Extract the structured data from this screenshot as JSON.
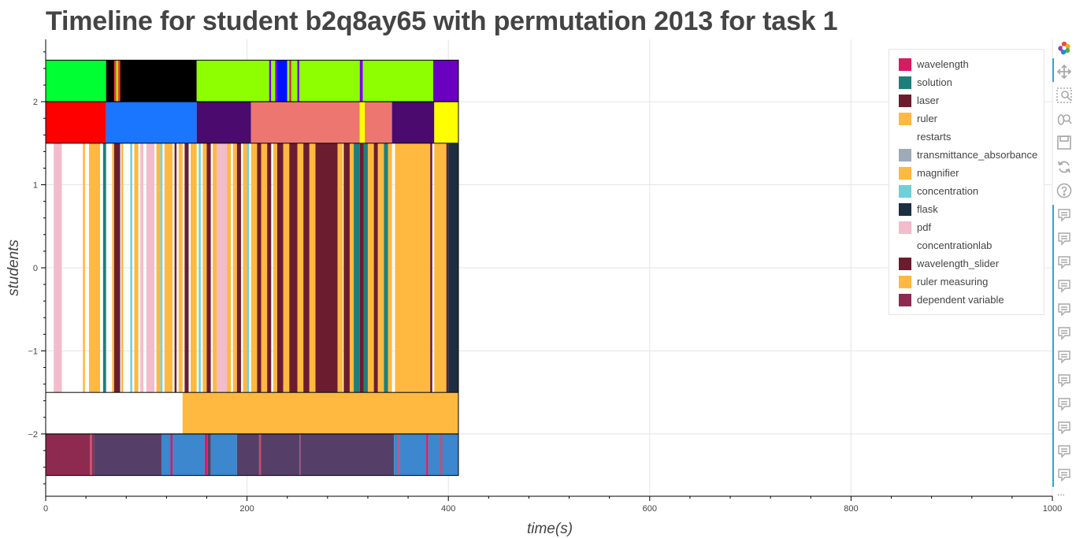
{
  "chart_data": {
    "type": "bar",
    "title": "Timeline for student b2q8ay65 with permutation 2013 for task 1",
    "xlabel": "time(s)",
    "ylabel": "students",
    "xlim": [
      0,
      1000
    ],
    "ylim": [
      -2.75,
      2.75
    ],
    "x_ticks": [
      0,
      200,
      400,
      600,
      800,
      1000
    ],
    "x_tick_labels": [
      "0",
      "200",
      "400",
      "600",
      "800",
      "1000"
    ],
    "y_ticks": [
      2,
      1,
      0,
      -1,
      -2
    ],
    "y_tick_labels": [
      "2",
      "1",
      "0",
      "−1",
      "−2"
    ],
    "grid": true,
    "legend_position": "top-right",
    "legend": [
      {
        "label": "wavelength",
        "color": "#d81b60"
      },
      {
        "label": "solution",
        "color": "#1e7f7a"
      },
      {
        "label": "laser",
        "color": "#6b1d2f"
      },
      {
        "label": "ruler",
        "color": "#ffb840"
      },
      {
        "label": "restarts",
        "color": "#ffffff"
      },
      {
        "label": "transmittance_absorbance",
        "color": "#9eaab8"
      },
      {
        "label": "magnifier",
        "color": "#ffb840"
      },
      {
        "label": "concentration",
        "color": "#6fd0d8"
      },
      {
        "label": "flask",
        "color": "#1c2e40"
      },
      {
        "label": "pdf",
        "color": "#f3bccc"
      },
      {
        "label": "concentrationlab",
        "color": "#ffffff"
      },
      {
        "label": "wavelength_slider",
        "color": "#6b1d2f"
      },
      {
        "label": "ruler measuring",
        "color": "#ffb840"
      },
      {
        "label": "dependent variable",
        "color": "#8e2a4f"
      }
    ],
    "rows": [
      {
        "y0": 2.0,
        "y1": 2.5,
        "segments": [
          {
            "start": 0,
            "end": 60,
            "color": "#00ff33"
          },
          {
            "start": 60,
            "end": 68,
            "color": "#000000"
          },
          {
            "start": 68,
            "end": 70,
            "color": "#ff3333"
          },
          {
            "start": 70,
            "end": 72,
            "color": "#8dff00"
          },
          {
            "start": 72,
            "end": 74,
            "color": "#ff3333"
          },
          {
            "start": 74,
            "end": 150,
            "color": "#000000"
          },
          {
            "start": 150,
            "end": 222,
            "color": "#8dff00"
          },
          {
            "start": 222,
            "end": 224,
            "color": "#7b00ff"
          },
          {
            "start": 224,
            "end": 228,
            "color": "#8dff00"
          },
          {
            "start": 228,
            "end": 230,
            "color": "#7b00ff"
          },
          {
            "start": 230,
            "end": 240,
            "color": "#0011ff"
          },
          {
            "start": 240,
            "end": 242,
            "color": "#8dff00"
          },
          {
            "start": 242,
            "end": 244,
            "color": "#d81b60"
          },
          {
            "start": 244,
            "end": 250,
            "color": "#8dff00"
          },
          {
            "start": 250,
            "end": 252,
            "color": "#7b00ff"
          },
          {
            "start": 252,
            "end": 312,
            "color": "#8dff00"
          },
          {
            "start": 312,
            "end": 315,
            "color": "#7b00ff"
          },
          {
            "start": 315,
            "end": 385,
            "color": "#8dff00"
          },
          {
            "start": 385,
            "end": 410,
            "color": "#6a00c0"
          }
        ]
      },
      {
        "y0": 1.5,
        "y1": 2.0,
        "segments": [
          {
            "start": 0,
            "end": 60,
            "color": "#ff0000"
          },
          {
            "start": 60,
            "end": 150,
            "color": "#1a75ff"
          },
          {
            "start": 150,
            "end": 204,
            "color": "#4b0a6e"
          },
          {
            "start": 204,
            "end": 312,
            "color": "#ee7670"
          },
          {
            "start": 312,
            "end": 317,
            "color": "#ffff00"
          },
          {
            "start": 317,
            "end": 344,
            "color": "#ee7670"
          },
          {
            "start": 344,
            "end": 386,
            "color": "#4b0a6e"
          },
          {
            "start": 386,
            "end": 410,
            "color": "#ffff00"
          }
        ]
      },
      {
        "y0": -1.5,
        "y1": 1.5,
        "segments": [
          {
            "start": 8,
            "end": 16,
            "color": "#f3bccc"
          },
          {
            "start": 37,
            "end": 39,
            "color": "#ffb840"
          },
          {
            "start": 43,
            "end": 45,
            "color": "#ffb840"
          },
          {
            "start": 44,
            "end": 54,
            "color": "#ffb840"
          },
          {
            "start": 57,
            "end": 60,
            "color": "#1e7f7a"
          },
          {
            "start": 66,
            "end": 68,
            "color": "#ffb840"
          },
          {
            "start": 68,
            "end": 74,
            "color": "#6b1d2f"
          },
          {
            "start": 75,
            "end": 77,
            "color": "#ffb840"
          },
          {
            "start": 84,
            "end": 86,
            "color": "#6fd0d8"
          },
          {
            "start": 88,
            "end": 92,
            "color": "#ffb840"
          },
          {
            "start": 94,
            "end": 97,
            "color": "#f3bccc"
          },
          {
            "start": 100,
            "end": 108,
            "color": "#f3bccc"
          },
          {
            "start": 110,
            "end": 114,
            "color": "#ffb840"
          },
          {
            "start": 114,
            "end": 116,
            "color": "#6fd0d8"
          },
          {
            "start": 118,
            "end": 126,
            "color": "#ffb840"
          },
          {
            "start": 128,
            "end": 130,
            "color": "#6b1d2f"
          },
          {
            "start": 132,
            "end": 136,
            "color": "#ffb840"
          },
          {
            "start": 138,
            "end": 142,
            "color": "#6b1d2f"
          },
          {
            "start": 144,
            "end": 150,
            "color": "#ffb840"
          },
          {
            "start": 152,
            "end": 154,
            "color": "#6fd0d8"
          },
          {
            "start": 156,
            "end": 160,
            "color": "#ffb840"
          },
          {
            "start": 160,
            "end": 164,
            "color": "#6b1d2f"
          },
          {
            "start": 166,
            "end": 170,
            "color": "#ffb840"
          },
          {
            "start": 170,
            "end": 180,
            "color": "#f3bccc"
          },
          {
            "start": 180,
            "end": 184,
            "color": "#ffb840"
          },
          {
            "start": 186,
            "end": 190,
            "color": "#ffb840"
          },
          {
            "start": 190,
            "end": 194,
            "color": "#6b1d2f"
          },
          {
            "start": 196,
            "end": 200,
            "color": "#ffb840"
          },
          {
            "start": 200,
            "end": 202,
            "color": "#6fd0d8"
          },
          {
            "start": 204,
            "end": 210,
            "color": "#ffb840"
          },
          {
            "start": 210,
            "end": 214,
            "color": "#6b1d2f"
          },
          {
            "start": 214,
            "end": 220,
            "color": "#ffb840"
          },
          {
            "start": 220,
            "end": 224,
            "color": "#6b1d2f"
          },
          {
            "start": 226,
            "end": 230,
            "color": "#ffb840"
          },
          {
            "start": 230,
            "end": 236,
            "color": "#6b1d2f"
          },
          {
            "start": 236,
            "end": 242,
            "color": "#ffb840"
          },
          {
            "start": 242,
            "end": 250,
            "color": "#6b1d2f"
          },
          {
            "start": 250,
            "end": 256,
            "color": "#ffb840"
          },
          {
            "start": 256,
            "end": 262,
            "color": "#6b1d2f"
          },
          {
            "start": 262,
            "end": 268,
            "color": "#ffb840"
          },
          {
            "start": 268,
            "end": 290,
            "color": "#6b1d2f"
          },
          {
            "start": 290,
            "end": 295,
            "color": "#ffb840"
          },
          {
            "start": 296,
            "end": 302,
            "color": "#6b1d2f"
          },
          {
            "start": 302,
            "end": 306,
            "color": "#ffb840"
          },
          {
            "start": 306,
            "end": 312,
            "color": "#1e7f7a"
          },
          {
            "start": 312,
            "end": 316,
            "color": "#6b1d2f"
          },
          {
            "start": 316,
            "end": 320,
            "color": "#1e7f7a"
          },
          {
            "start": 320,
            "end": 326,
            "color": "#ffb840"
          },
          {
            "start": 326,
            "end": 330,
            "color": "#6b1d2f"
          },
          {
            "start": 330,
            "end": 336,
            "color": "#ffb840"
          },
          {
            "start": 336,
            "end": 340,
            "color": "#1e7f7a"
          },
          {
            "start": 340,
            "end": 344,
            "color": "#ffb840"
          },
          {
            "start": 347,
            "end": 382,
            "color": "#ffb840"
          },
          {
            "start": 382,
            "end": 384,
            "color": "#6b1d2f"
          },
          {
            "start": 386,
            "end": 398,
            "color": "#ffb840"
          },
          {
            "start": 398,
            "end": 400,
            "color": "#6b1d2f"
          },
          {
            "start": 400,
            "end": 410,
            "color": "#1c2e40"
          }
        ]
      },
      {
        "y0": -2.0,
        "y1": -1.5,
        "segments": [
          {
            "start": 136,
            "end": 410,
            "color": "#ffb840"
          }
        ]
      },
      {
        "y0": -2.5,
        "y1": -2.0,
        "segments": [
          {
            "start": 0,
            "end": 44,
            "color": "#8e2a4f"
          },
          {
            "start": 44,
            "end": 46,
            "color": "#c64b6e"
          },
          {
            "start": 46,
            "end": 48,
            "color": "#8e2a4f"
          },
          {
            "start": 48,
            "end": 115,
            "color": "#553f68"
          },
          {
            "start": 115,
            "end": 124,
            "color": "#3c87cd"
          },
          {
            "start": 124,
            "end": 126,
            "color": "#d81b60"
          },
          {
            "start": 126,
            "end": 158,
            "color": "#3c87cd"
          },
          {
            "start": 158,
            "end": 161,
            "color": "#d81b60"
          },
          {
            "start": 161,
            "end": 164,
            "color": "#553f68"
          },
          {
            "start": 164,
            "end": 190,
            "color": "#3c87cd"
          },
          {
            "start": 190,
            "end": 212,
            "color": "#553f68"
          },
          {
            "start": 212,
            "end": 214,
            "color": "#c64b6e"
          },
          {
            "start": 214,
            "end": 252,
            "color": "#553f68"
          },
          {
            "start": 252,
            "end": 253,
            "color": "#c64b6e"
          },
          {
            "start": 253,
            "end": 346,
            "color": "#553f68"
          },
          {
            "start": 346,
            "end": 350,
            "color": "#3c87cd"
          },
          {
            "start": 350,
            "end": 352,
            "color": "#c64b6e"
          },
          {
            "start": 352,
            "end": 378,
            "color": "#3c87cd"
          },
          {
            "start": 378,
            "end": 380,
            "color": "#d81b60"
          },
          {
            "start": 380,
            "end": 392,
            "color": "#3c87cd"
          },
          {
            "start": 392,
            "end": 394,
            "color": "#c64b6e"
          },
          {
            "start": 394,
            "end": 410,
            "color": "#3c87cd"
          }
        ]
      }
    ]
  },
  "toolbar": {
    "logo_icon": "bokeh-logo-icon",
    "tools": [
      "pan-icon",
      "box-zoom-icon",
      "wheel-zoom-icon",
      "save-icon",
      "reset-icon",
      "help-icon"
    ],
    "hover_tool_count": 12,
    "more_label": "..."
  }
}
